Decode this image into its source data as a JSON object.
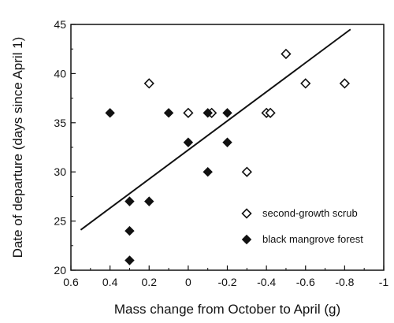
{
  "chart_data": {
    "type": "scatter",
    "xlabel": "Mass change from October to April (g)",
    "ylabel": "Date of departure (days since April 1)",
    "xlim": [
      0.6,
      -1.0
    ],
    "ylim": [
      20,
      45
    ],
    "x_axis_reversed": true,
    "x_ticks": [
      0.6,
      0.4,
      0.2,
      0,
      -0.2,
      -0.4,
      -0.6,
      -0.8,
      -1
    ],
    "x_tick_labels": [
      "0.6",
      "0.4",
      "0.2",
      "0",
      "-0.2",
      "-0.4",
      "-0.6",
      "-0.8",
      "-1"
    ],
    "y_ticks": [
      20,
      25,
      30,
      35,
      40,
      45
    ],
    "y_tick_labels": [
      "20",
      "25",
      "30",
      "35",
      "40",
      "45"
    ],
    "grid": false,
    "legend_position": "bottom-right",
    "series": [
      {
        "name": "second-growth scrub",
        "marker": "open-diamond",
        "color": "#111111",
        "points": [
          {
            "x": 0.2,
            "y": 39
          },
          {
            "x": 0.0,
            "y": 36
          },
          {
            "x": -0.12,
            "y": 36
          },
          {
            "x": -0.3,
            "y": 30
          },
          {
            "x": -0.4,
            "y": 36
          },
          {
            "x": -0.42,
            "y": 36
          },
          {
            "x": -0.5,
            "y": 42
          },
          {
            "x": -0.6,
            "y": 39
          },
          {
            "x": -0.8,
            "y": 39
          }
        ]
      },
      {
        "name": "black mangrove forest",
        "marker": "filled-diamond",
        "color": "#111111",
        "points": [
          {
            "x": 0.4,
            "y": 36
          },
          {
            "x": 0.3,
            "y": 27
          },
          {
            "x": 0.3,
            "y": 24
          },
          {
            "x": 0.3,
            "y": 21
          },
          {
            "x": 0.2,
            "y": 27
          },
          {
            "x": 0.1,
            "y": 36
          },
          {
            "x": 0.0,
            "y": 33
          },
          {
            "x": -0.1,
            "y": 36
          },
          {
            "x": -0.1,
            "y": 30
          },
          {
            "x": -0.2,
            "y": 36
          },
          {
            "x": -0.2,
            "y": 33
          }
        ]
      }
    ],
    "regression_line": {
      "x": [
        0.55,
        -0.83
      ],
      "y": [
        24.1,
        44.5
      ]
    }
  }
}
